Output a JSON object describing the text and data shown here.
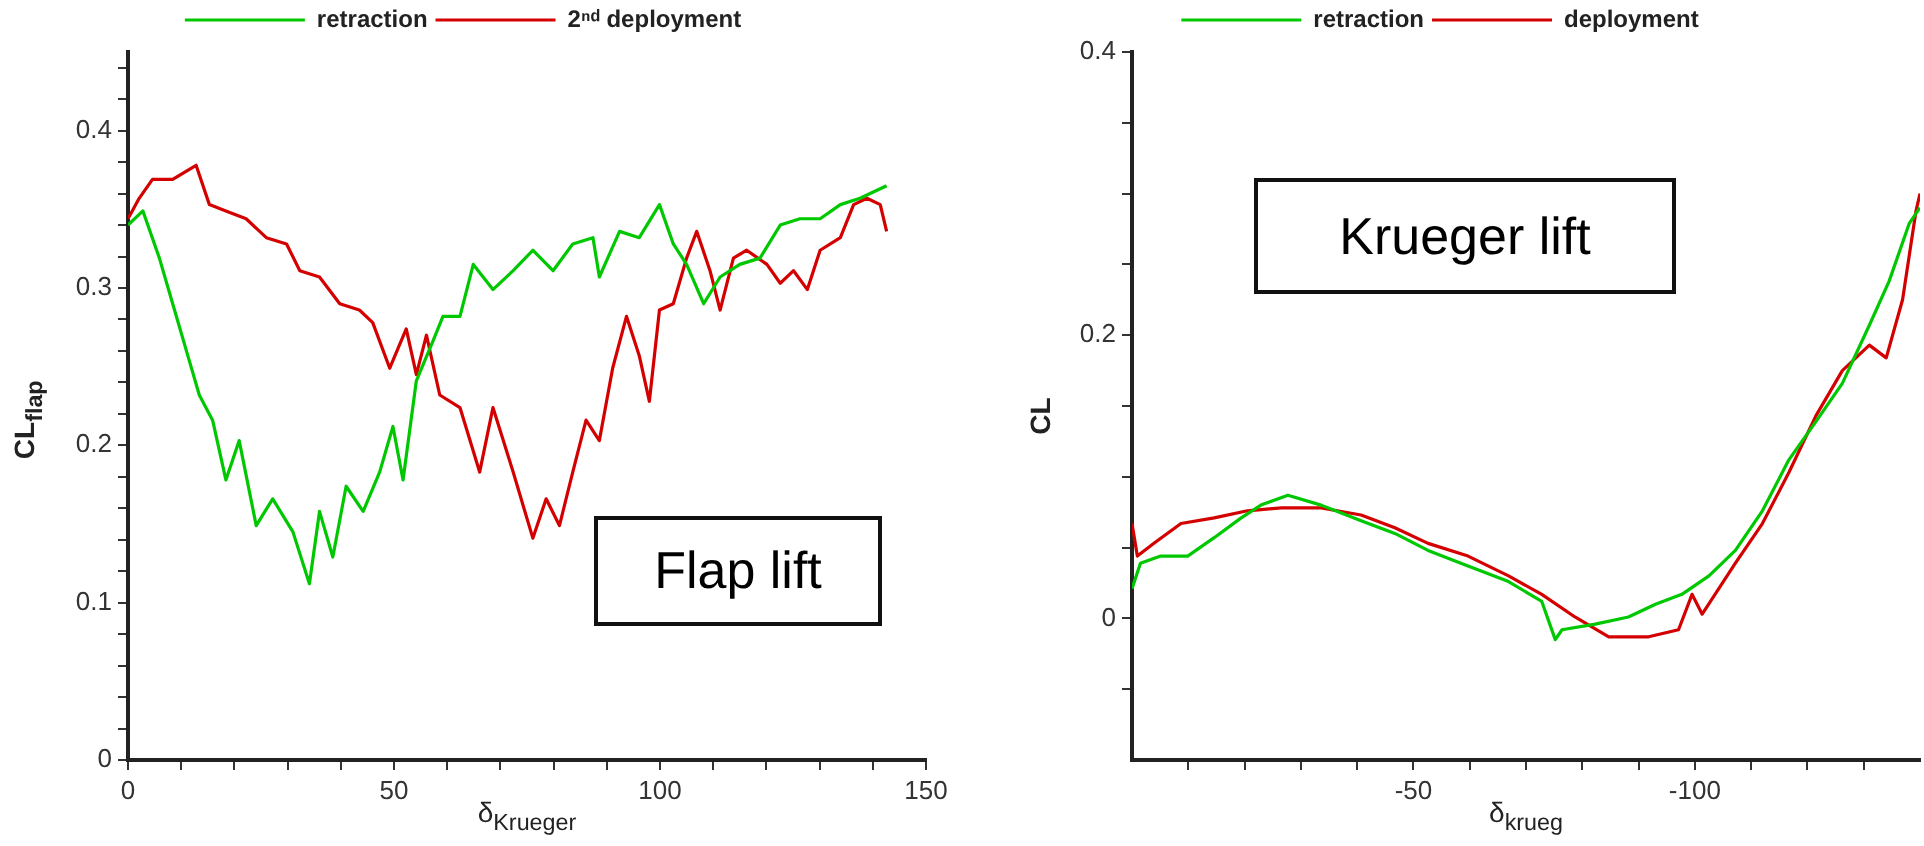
{
  "chart_data": [
    {
      "type": "line",
      "xlabel": "δ$_{Krueger}$",
      "ylabel": "CL$_{flap}$",
      "annotations": [
        "Flap lift"
      ],
      "legend": "top",
      "grid": false,
      "marker": "none",
      "line_style": "solid",
      "xlim": [
        0,
        150
      ],
      "xticks": [
        0,
        {
          "value": 10,
          "label": null
        },
        {
          "value": 20,
          "label": null
        },
        {
          "value": 30,
          "label": null
        },
        {
          "value": 40,
          "label": null
        },
        50,
        {
          "value": 60,
          "label": null
        },
        {
          "value": 70,
          "label": null
        },
        {
          "value": 80,
          "label": null
        },
        {
          "value": 90,
          "label": null
        },
        100,
        {
          "value": 110,
          "label": null
        },
        {
          "value": 120,
          "label": null
        },
        {
          "value": 130,
          "label": null
        },
        {
          "value": 140,
          "label": null
        },
        150
      ],
      "ylim": [
        0,
        0.45
      ],
      "yticks": [
        0,
        {
          "value": 0.02,
          "label": null
        },
        {
          "value": 0.04,
          "label": null
        },
        {
          "value": 0.06,
          "label": null
        },
        {
          "value": 0.08,
          "label": null
        },
        0.1,
        {
          "value": 0.12,
          "label": null
        },
        {
          "value": 0.14,
          "label": null
        },
        {
          "value": 0.16,
          "label": null
        },
        {
          "value": 0.18,
          "label": null
        },
        0.2,
        {
          "value": 0.22,
          "label": null
        },
        {
          "value": 0.24,
          "label": null
        },
        {
          "value": 0.26,
          "label": null
        },
        {
          "value": 0.28,
          "label": null
        },
        0.3,
        {
          "value": 0.32,
          "label": null
        },
        {
          "value": 0.34,
          "label": null
        },
        {
          "value": 0.36,
          "label": null
        },
        {
          "value": 0.38,
          "label": null
        },
        0.4,
        {
          "value": 0.42,
          "label": null
        },
        {
          "value": 0.44,
          "label": null
        }
      ],
      "series": [
        {
          "name": "retraction",
          "color": "#00c800",
          "x": [
            0,
            2.8,
            5.9,
            8.4,
            10.9,
            13.4,
            15.9,
            18.4,
            20.9,
            24.1,
            27.2,
            31,
            34.1,
            36,
            38.5,
            41,
            44.2,
            47.3,
            49.8,
            51.7,
            54.2,
            57.3,
            59.2,
            62.4,
            64.9,
            68.6,
            72.4,
            76.1,
            79.9,
            83.6,
            87.4,
            88.6,
            92.4,
            96.1,
            99.9,
            102.5,
            105,
            108.2,
            111.3,
            115,
            118.8,
            122.6,
            126.3,
            130.1,
            133.9,
            137.6,
            140.1,
            142.6
          ],
          "values": [
            0.34,
            0.349,
            0.319,
            0.29,
            0.261,
            0.232,
            0.216,
            0.178,
            0.203,
            0.149,
            0.166,
            0.145,
            0.112,
            0.158,
            0.129,
            0.174,
            0.158,
            0.183,
            0.212,
            0.178,
            0.241,
            0.266,
            0.282,
            0.282,
            0.315,
            0.299,
            0.311,
            0.324,
            0.311,
            0.328,
            0.332,
            0.307,
            0.336,
            0.332,
            0.353,
            0.328,
            0.315,
            0.29,
            0.307,
            0.315,
            0.319,
            0.34,
            0.344,
            0.344,
            0.353,
            0.357,
            0.361,
            0.365
          ]
        },
        {
          "name": "2ⁿᵈ deployment",
          "color": "#d40000",
          "x": [
            0,
            2.1,
            4.6,
            8.4,
            12.8,
            15.3,
            18.4,
            22.2,
            26,
            29.8,
            32.3,
            36,
            39.8,
            43.5,
            46,
            49.2,
            52.3,
            54.2,
            56.1,
            58.6,
            62.4,
            66.1,
            68.6,
            72.4,
            76.1,
            78.6,
            81.1,
            83.6,
            86.1,
            88.6,
            91.1,
            93.7,
            96.1,
            98,
            99.9,
            102.5,
            105,
            106.9,
            109.4,
            111.3,
            113.8,
            116.3,
            120.1,
            122.6,
            125.1,
            127.7,
            130.1,
            133.9,
            136.4,
            138.9,
            141.4,
            142.6
          ],
          "values": [
            0.344,
            0.357,
            0.369,
            0.369,
            0.378,
            0.353,
            0.349,
            0.344,
            0.332,
            0.328,
            0.311,
            0.307,
            0.29,
            0.286,
            0.278,
            0.249,
            0.274,
            0.245,
            0.27,
            0.232,
            0.224,
            0.183,
            0.224,
            0.183,
            0.141,
            0.166,
            0.149,
            0.183,
            0.216,
            0.203,
            0.249,
            0.282,
            0.257,
            0.228,
            0.286,
            0.29,
            0.319,
            0.336,
            0.311,
            0.286,
            0.319,
            0.324,
            0.315,
            0.303,
            0.311,
            0.299,
            0.324,
            0.332,
            0.353,
            0.357,
            0.353,
            0.336
          ]
        }
      ]
    },
    {
      "type": "line",
      "xlabel": "δ$_{krueg}$",
      "ylabel": "CL",
      "annotations": [
        "Krueger lift"
      ],
      "legend": "top",
      "grid": false,
      "marker": "none",
      "line_style": "solid",
      "xlim": [
        0,
        -140
      ],
      "xticks": [
        {
          "value": -10,
          "label": null
        },
        {
          "value": -20,
          "label": null
        },
        {
          "value": -30,
          "label": null
        },
        {
          "value": -40,
          "label": null
        },
        -50,
        {
          "value": -60,
          "label": null
        },
        {
          "value": -70,
          "label": null
        },
        {
          "value": -80,
          "label": null
        },
        {
          "value": -90,
          "label": null
        },
        -100,
        {
          "value": -110,
          "label": null
        },
        {
          "value": -120,
          "label": null
        },
        {
          "value": -130,
          "label": null
        }
      ],
      "ylim": [
        -0.1,
        0.4
      ],
      "yticks": [
        {
          "value": -0.05,
          "label": null
        },
        0,
        {
          "value": 0.05,
          "label": null
        },
        {
          "value": 0.1,
          "label": null
        },
        {
          "value": 0.15,
          "label": null
        },
        0.2,
        {
          "value": 0.25,
          "label": null
        },
        {
          "value": 0.3,
          "label": null
        },
        {
          "value": 0.35,
          "label": null
        },
        0.4
      ],
      "series": [
        {
          "name": "retraction",
          "color": "#00c800",
          "x": [
            0,
            -1.5,
            -5.1,
            -9.9,
            -14.6,
            -19.4,
            -22.9,
            -27.7,
            -33.6,
            -40.7,
            -46.7,
            -52.6,
            -59.7,
            -66.9,
            -72.8,
            -75.2,
            -76.4,
            -82.3,
            -88.2,
            -93,
            -97.7,
            -102.5,
            -107.2,
            -112,
            -116.7,
            -121.5,
            -126.2,
            -131,
            -134.5,
            -138.1,
            -140
          ],
          "values": [
            0.021,
            0.039,
            0.044,
            0.044,
            0.057,
            0.071,
            0.08,
            0.087,
            0.08,
            0.069,
            0.06,
            0.048,
            0.037,
            0.026,
            0.012,
            -0.015,
            -0.008,
            -0.004,
            0.001,
            0.01,
            0.017,
            0.03,
            0.048,
            0.076,
            0.112,
            0.139,
            0.166,
            0.207,
            0.238,
            0.279,
            0.29
          ]
        },
        {
          "name": "deployment",
          "color": "#d40000",
          "x": [
            0,
            -0.95,
            -3.9,
            -8.7,
            -14.6,
            -20.5,
            -26.5,
            -33.6,
            -40.7,
            -46.7,
            -52.6,
            -59.7,
            -66.9,
            -72.8,
            -78.7,
            -84.7,
            -91.8,
            -97.1,
            -99.5,
            -101.3,
            -107.2,
            -112,
            -116.7,
            -121.5,
            -126.2,
            -131,
            -134,
            -136.9,
            -139.3,
            -140
          ],
          "values": [
            0.067,
            0.044,
            0.053,
            0.067,
            0.071,
            0.076,
            0.078,
            0.078,
            0.073,
            0.064,
            0.053,
            0.044,
            0.03,
            0.017,
            0.001,
            -0.013,
            -0.013,
            -0.008,
            0.017,
            0.003,
            0.039,
            0.067,
            0.103,
            0.143,
            0.175,
            0.193,
            0.184,
            0.225,
            0.288,
            0.3
          ]
        }
      ]
    }
  ]
}
